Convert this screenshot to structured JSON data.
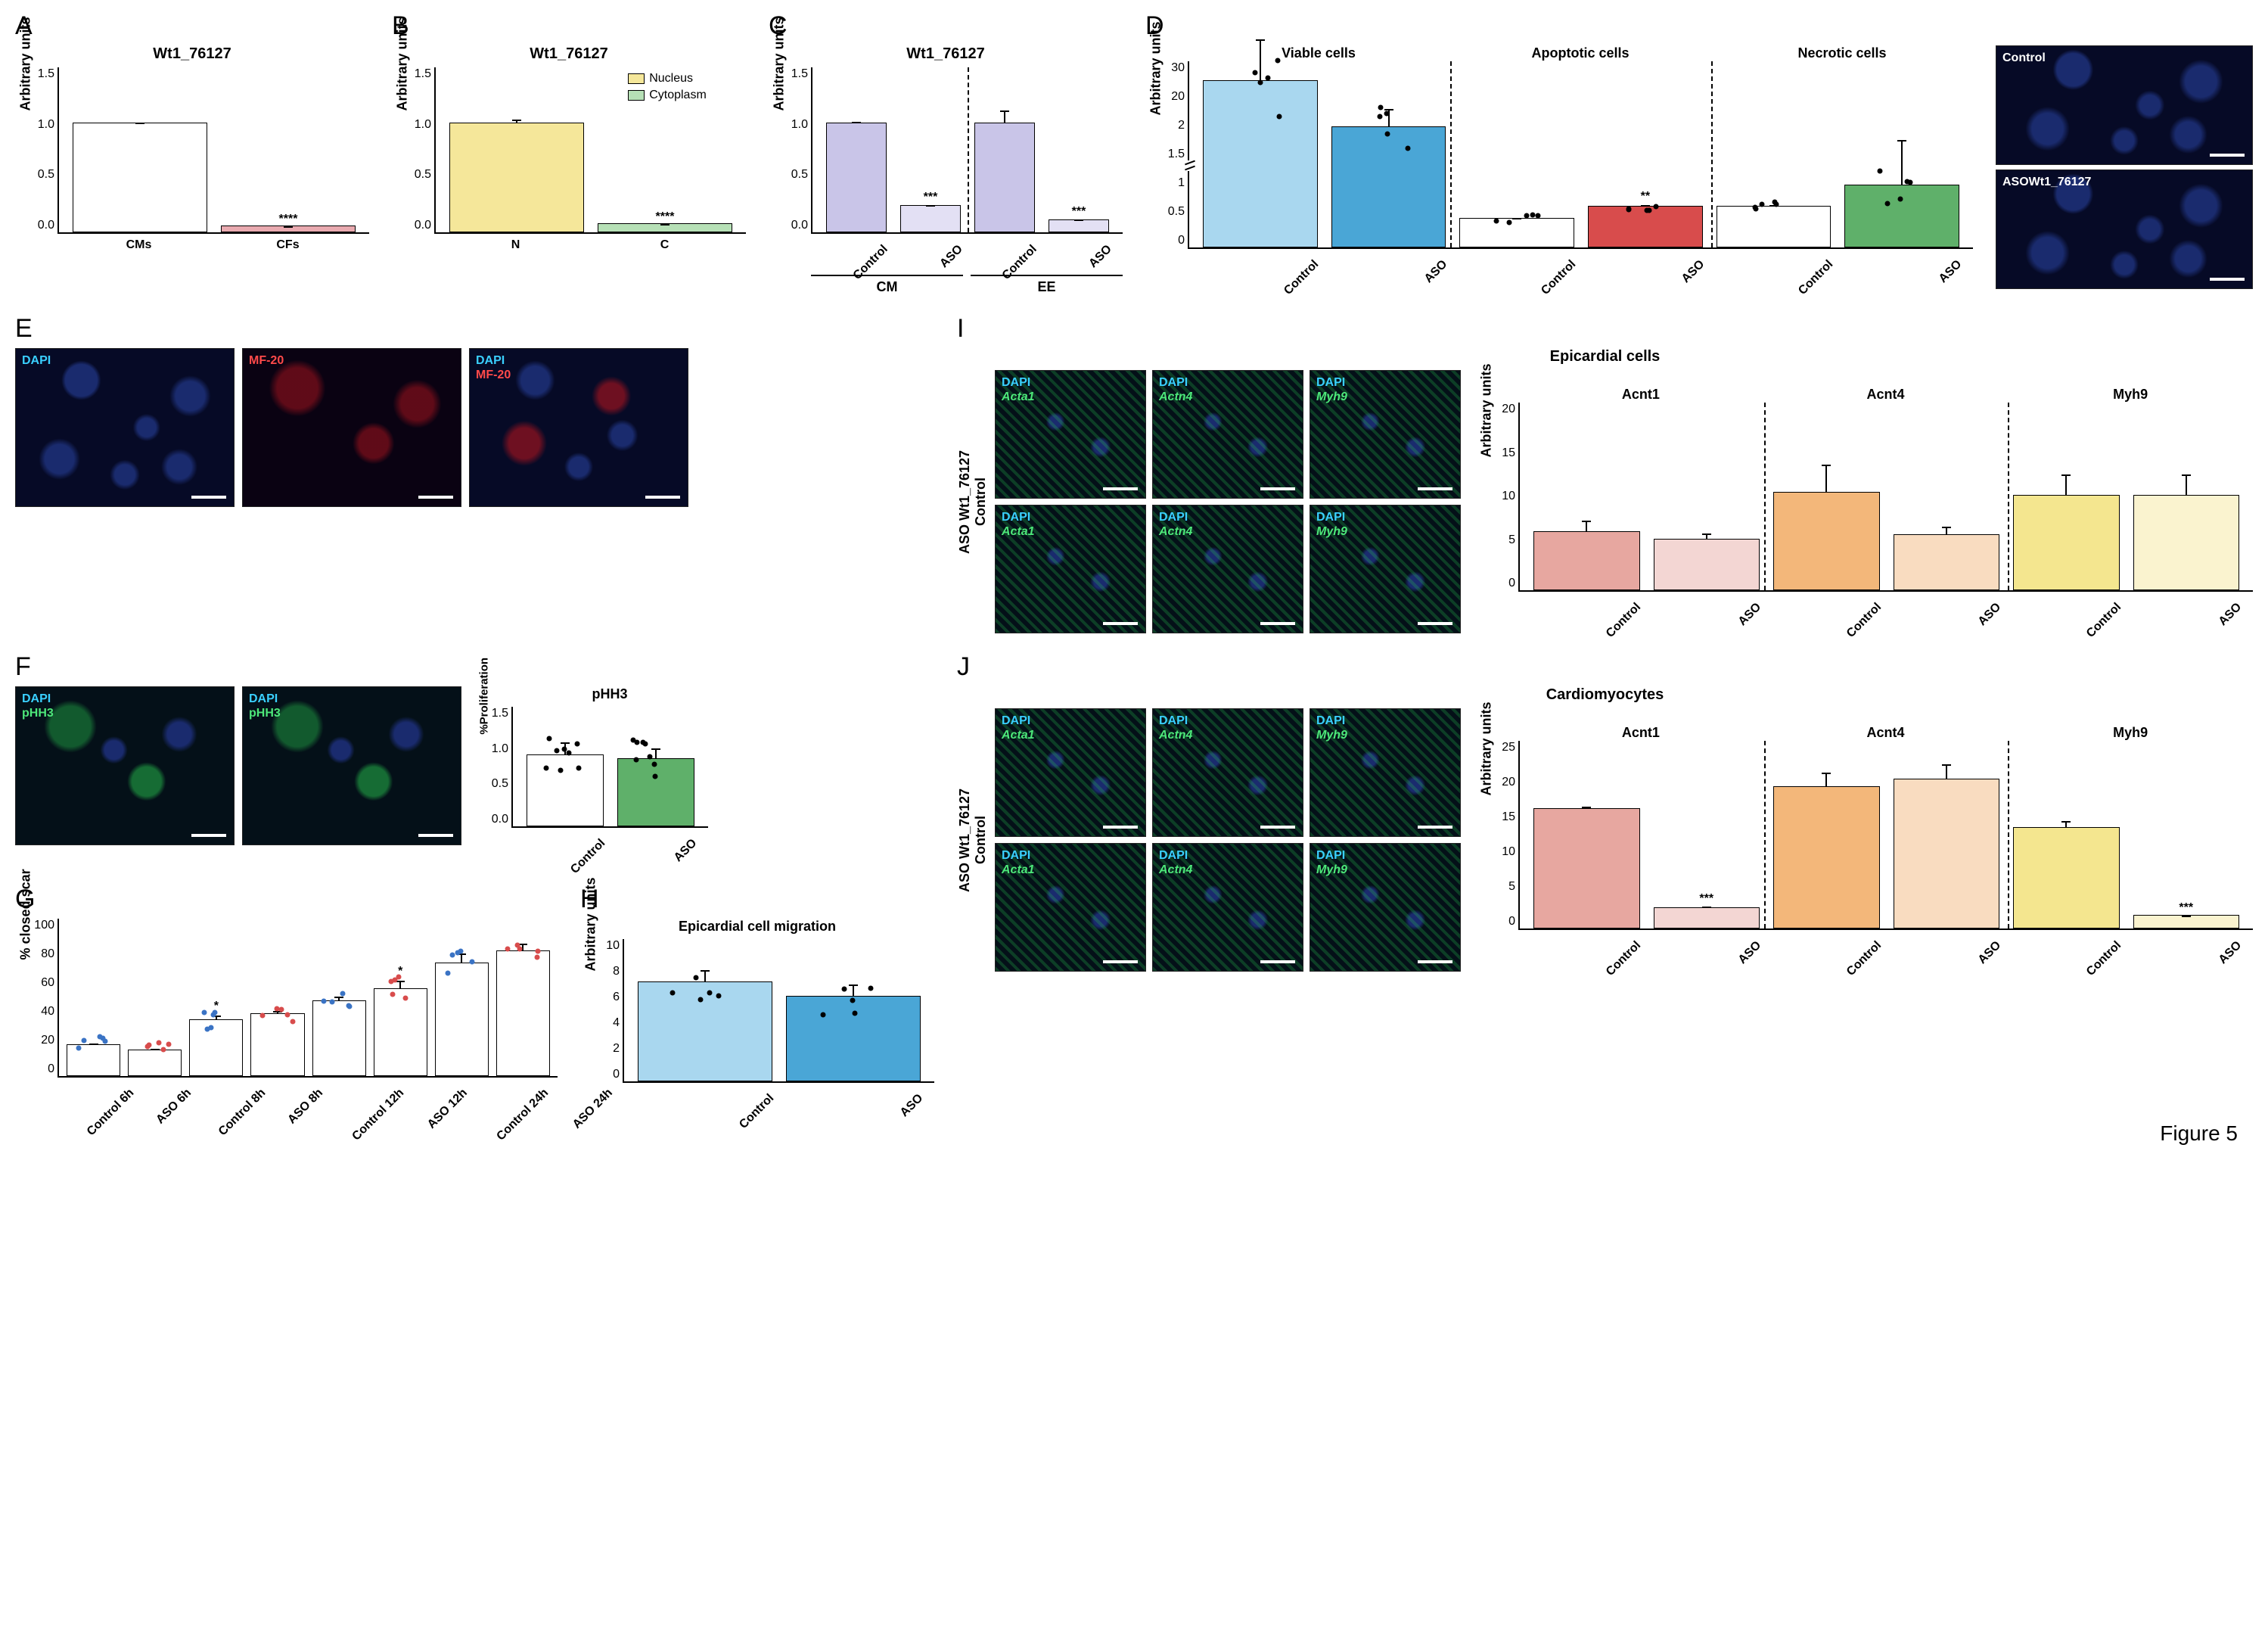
{
  "figure_label": "Figure 5",
  "colors": {
    "white": "#ffffff",
    "black": "#000000",
    "pink": "#e9aab0",
    "yellow": "#f5e79a",
    "lightgreen": "#b6e0b6",
    "lilac": "#c9c5e8",
    "lilac_light": "#e3e0f4",
    "blue_light": "#a9d7ef",
    "blue_med": "#4aa6d6",
    "red": "#d84c4c",
    "green": "#5fb06a",
    "orange": "#f3b77a",
    "orange_light": "#f9dcc0",
    "yellow2": "#f4e68f",
    "yellow_light": "#faf3cf",
    "salmon": "#e7a7a0",
    "salmon_light": "#f3d6d3",
    "cyan_txt": "#3ad0ff",
    "green_txt": "#4de87a",
    "red_txt": "#ff4a4a",
    "white_txt": "#ffffff"
  },
  "A": {
    "title": "Wt1_76127",
    "ylabel": "Arbitrary units",
    "ylim": [
      0,
      1.5
    ],
    "ytick_step": 0.5,
    "categories": [
      "CMs",
      "CFs"
    ],
    "values": [
      1.0,
      0.06
    ],
    "errs": [
      0.01,
      0.01
    ],
    "bar_colors": [
      "#ffffff",
      "#e9aab0"
    ],
    "sig": {
      "idx": 1,
      "label": "****"
    }
  },
  "B": {
    "title": "Wt1_76127",
    "ylabel": "Arbitrary units",
    "ylim": [
      0,
      1.5
    ],
    "ytick_step": 0.5,
    "categories": [
      "N",
      "C"
    ],
    "values": [
      1.0,
      0.08
    ],
    "errs": [
      0.05,
      0.02
    ],
    "bar_colors": [
      "#f5e79a",
      "#b6e0b6"
    ],
    "legend": [
      {
        "label": "Nucleus",
        "color": "#f5e79a"
      },
      {
        "label": "Cytoplasm",
        "color": "#b6e0b6"
      }
    ],
    "sig": {
      "idx": 1,
      "label": "****"
    }
  },
  "C": {
    "title": "Wt1_76127",
    "ylabel": "Arbitrary units",
    "ylim": [
      0,
      1.5
    ],
    "ytick_step": 0.5,
    "groups": [
      "CM",
      "EE"
    ],
    "categories": [
      "Control",
      "ASO",
      "Control",
      "ASO"
    ],
    "values": [
      1.0,
      0.25,
      1.0,
      0.12
    ],
    "errs": [
      0.02,
      0.04,
      0.17,
      0.08
    ],
    "bar_colors": [
      "#c9c5e8",
      "#e3e0f4",
      "#c9c5e8",
      "#e3e0f4"
    ],
    "sigs": [
      {
        "idx": 1,
        "label": "***"
      },
      {
        "idx": 3,
        "label": "***"
      }
    ]
  },
  "D": {
    "group_headers": [
      "Viable cells",
      "Apoptotic cells",
      "Necrotic cells"
    ],
    "ylabel": "Arbitrary units",
    "yticks": [
      0,
      0.5,
      1.0,
      1.5,
      2.0,
      20,
      30
    ],
    "categories": [
      "Control",
      "ASO",
      "Control",
      "ASO",
      "Control",
      "ASO"
    ],
    "values": [
      28,
      23,
      0.7,
      1.0,
      1.0,
      1.5
    ],
    "errs": [
      5,
      3,
      0.12,
      0.15,
      0.15,
      0.55
    ],
    "bar_colors": [
      "#a9d7ef",
      "#4aa6d6",
      "#ffffff",
      "#d84c4c",
      "#ffffff",
      "#5fb06a"
    ],
    "sigs": [
      {
        "idx": 3,
        "label": "**"
      }
    ],
    "image_labels": {
      "top": "Control",
      "bottom": "ASOWt1_76127"
    }
  },
  "E": {
    "panels": [
      {
        "labels": [
          {
            "text": "DAPI",
            "color": "#3ad0ff"
          }
        ],
        "style": "noise-blue"
      },
      {
        "labels": [
          {
            "text": "MF-20",
            "color": "#ff4a4a"
          }
        ],
        "style": "noise-red"
      },
      {
        "labels": [
          {
            "text": "DAPI",
            "color": "#3ad0ff"
          },
          {
            "text": "MF-20",
            "color": "#ff4a4a"
          }
        ],
        "style": "noise-mix"
      }
    ]
  },
  "F": {
    "panels": [
      {
        "labels": [
          {
            "text": "DAPI",
            "color": "#3ad0ff"
          },
          {
            "text": "pHH3",
            "color": "#4de87a"
          }
        ],
        "style": "noise-green"
      },
      {
        "labels": [
          {
            "text": "DAPI",
            "color": "#3ad0ff"
          },
          {
            "text": "pHH3",
            "color": "#4de87a"
          }
        ],
        "style": "noise-green"
      }
    ],
    "chart": {
      "title": "pHH3",
      "ylabel": "%Proliferation",
      "ylim": [
        0,
        1.5
      ],
      "ytick_step": 0.5,
      "categories": [
        "Control",
        "ASO"
      ],
      "values": [
        0.9,
        0.85
      ],
      "errs": [
        0.28,
        0.25
      ],
      "bar_colors": [
        "#ffffff",
        "#5fb06a"
      ],
      "n_points": 8
    }
  },
  "G": {
    "ylabel": "% closed scar",
    "ylim": [
      0,
      100
    ],
    "ytick_step": 20,
    "categories": [
      "Control 6h",
      "ASO 6h",
      "Control 8h",
      "ASO 8h",
      "Control 12h",
      "ASO 12h",
      "Control 24h",
      "ASO 24h"
    ],
    "values": [
      20,
      17,
      36,
      40,
      48,
      56,
      72,
      80
    ],
    "errs": [
      6,
      6,
      9,
      5,
      6,
      9,
      9,
      6
    ],
    "bar_colors": [
      "#ffffff",
      "#ffffff",
      "#ffffff",
      "#ffffff",
      "#ffffff",
      "#ffffff",
      "#ffffff",
      "#ffffff"
    ],
    "point_colors": [
      "#3a73c4",
      "#d84c4c",
      "#3a73c4",
      "#d84c4c",
      "#3a73c4",
      "#d84c4c",
      "#3a73c4",
      "#d84c4c"
    ],
    "sigs": [
      {
        "idx": 2,
        "label": "*"
      },
      {
        "idx": 5,
        "label": "*"
      }
    ]
  },
  "H": {
    "title": "Epicardial cell migration",
    "ylabel": "Arbitrary units",
    "ylim": [
      0,
      10
    ],
    "ytick_step": 2,
    "categories": [
      "Control",
      "ASO"
    ],
    "values": [
      7.0,
      6.0
    ],
    "errs": [
      1.3,
      1.5
    ],
    "bar_colors": [
      "#a9d7ef",
      "#4aa6d6"
    ]
  },
  "I": {
    "title": "Epicardial cells",
    "row_labels": [
      "Control",
      "ASO Wt1_76127"
    ],
    "col_markers": [
      "Acta1",
      "Actn4",
      "Myh9"
    ],
    "chart": {
      "group_headers": [
        "Acnt1",
        "Acnt4",
        "Myh9"
      ],
      "ylabel": "Arbitrary units",
      "ylim": [
        0,
        20
      ],
      "ytick_step": 5,
      "categories": [
        "Control",
        "ASO",
        "Control",
        "ASO",
        "Control",
        "ASO"
      ],
      "values": [
        6.3,
        5.5,
        10.5,
        6.0,
        10.2,
        10.2
      ],
      "errs": [
        3.8,
        2.5,
        5.8,
        2.8,
        4.5,
        4.5
      ],
      "bar_colors": [
        "#e7a7a0",
        "#f3d6d3",
        "#f3b77a",
        "#f9dcc0",
        "#f4e68f",
        "#faf3cf"
      ]
    }
  },
  "J": {
    "title": "Cardiomyocytes",
    "row_labels": [
      "Control",
      "ASO Wt1_76127"
    ],
    "col_markers": [
      "Acta1",
      "Actn4",
      "Myh9"
    ],
    "chart": {
      "group_headers": [
        "Acnt1",
        "Acnt4",
        "Myh9"
      ],
      "ylabel": "Arbitrary units",
      "ylim": [
        0,
        25
      ],
      "ytick_step": 5,
      "categories": [
        "Control",
        "ASO",
        "Control",
        "ASO",
        "Control",
        "ASO"
      ],
      "values": [
        16,
        2.8,
        19,
        20,
        13.5,
        1.8
      ],
      "errs": [
        0.5,
        2.1,
        2.5,
        2.5,
        1.8,
        0.5
      ],
      "bar_colors": [
        "#e7a7a0",
        "#f3d6d3",
        "#f3b77a",
        "#f9dcc0",
        "#f4e68f",
        "#faf3cf"
      ],
      "sigs": [
        {
          "idx": 1,
          "label": "***"
        },
        {
          "idx": 5,
          "label": "***"
        }
      ]
    }
  }
}
